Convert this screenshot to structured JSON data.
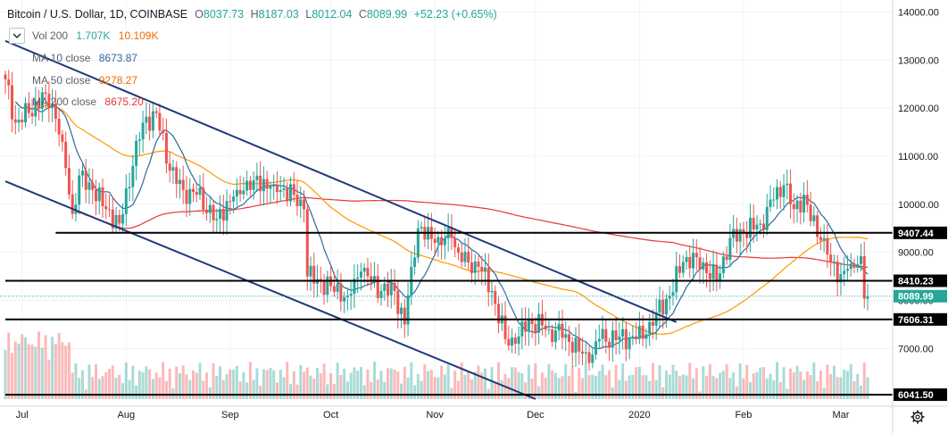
{
  "header": {
    "title": "Bitcoin / U.S. Dollar, 1D, COINBASE",
    "open_label": "O",
    "open": "8037.73",
    "high_label": "H",
    "high": "8187.03",
    "low_label": "L",
    "low": "8012.04",
    "close_label": "C",
    "close": "8089.99",
    "change": "+52.23 (+0.65%)"
  },
  "indicators": [
    {
      "label": "Vol 200",
      "values": [
        "1.707K",
        "10.109K"
      ],
      "colors": [
        "#26a69a",
        "#ef6c00"
      ]
    },
    {
      "label": "MA 10 close",
      "values": [
        "8673.87"
      ],
      "colors": [
        "#2d6a9f"
      ]
    },
    {
      "label": "MA 50 close",
      "values": [
        "9278.27"
      ],
      "colors": [
        "#ff9800"
      ]
    },
    {
      "label": "MA 200 close",
      "values": [
        "8675.20"
      ],
      "colors": [
        "#e53935"
      ]
    }
  ],
  "colors": {
    "up": "#26a69a",
    "down": "#ef5350",
    "ma10": "#2d6a9f",
    "ma50": "#ff9800",
    "ma200": "#e53935",
    "channel": "#1f3a7a",
    "level": "#000000"
  },
  "icons": {
    "collapse": "chevron-down-icon",
    "settings": "gear-icon"
  },
  "chart_data": {
    "type": "candlestick",
    "title": "Bitcoin / U.S. Dollar, 1D, COINBASE",
    "ylim": [
      5950,
      14250
    ],
    "y_ticks": [
      7000,
      8000,
      9000,
      10000,
      11000,
      12000,
      13000,
      14000
    ],
    "y_tick_labels": [
      "7000.00",
      "8000.00",
      "9000.00",
      "10000.00",
      "11000.00",
      "12000.00",
      "13000.00",
      "14000.00"
    ],
    "x_labels": [
      "Jul",
      "Aug",
      "Sep",
      "Oct",
      "Nov",
      "Dec",
      "2020",
      "Feb",
      "Mar"
    ],
    "x_label_dates": [
      "2019-07-01",
      "2019-08-01",
      "2019-09-01",
      "2019-10-01",
      "2019-11-01",
      "2019-12-01",
      "2020-01-01",
      "2020-02-01",
      "2020-03-01"
    ],
    "date_range": [
      "2019-06-26",
      "2020-03-09"
    ],
    "horizontal_levels": [
      {
        "value": 9407.44,
        "label": "9407.44",
        "from": "2019-07-11"
      },
      {
        "value": 8410.23,
        "label": "8410.23",
        "from": "2019-06-26"
      },
      {
        "value": 7606.31,
        "label": "7606.31",
        "from": "2019-06-26"
      },
      {
        "value": 6041.5,
        "label": "6041.50",
        "from": "2019-06-26"
      }
    ],
    "current_price": {
      "value": 8089.99,
      "label": "8089.99"
    },
    "channel_lines": [
      {
        "start": [
          "2019-06-26",
          13400
        ],
        "end": [
          "2020-01-12",
          7550
        ]
      },
      {
        "start": [
          "2019-06-26",
          10480
        ],
        "end": [
          "2019-12-01",
          5950
        ]
      }
    ],
    "anchor_closes": [
      [
        "2019-06-26",
        12600
      ],
      [
        "2019-06-29",
        11700
      ],
      [
        "2019-07-03",
        11900
      ],
      [
        "2019-07-08",
        12300
      ],
      [
        "2019-07-10",
        12100
      ],
      [
        "2019-07-13",
        11300
      ],
      [
        "2019-07-16",
        9800
      ],
      [
        "2019-07-18",
        10600
      ],
      [
        "2019-07-22",
        10300
      ],
      [
        "2019-07-26",
        9900
      ],
      [
        "2019-07-30",
        9600
      ],
      [
        "2019-08-03",
        10800
      ],
      [
        "2019-08-06",
        11700
      ],
      [
        "2019-08-10",
        11900
      ],
      [
        "2019-08-14",
        10700
      ],
      [
        "2019-08-18",
        10300
      ],
      [
        "2019-08-22",
        10200
      ],
      [
        "2019-08-28",
        9700
      ],
      [
        "2019-09-03",
        10300
      ],
      [
        "2019-09-08",
        10500
      ],
      [
        "2019-09-14",
        10400
      ],
      [
        "2019-09-20",
        10200
      ],
      [
        "2019-09-23",
        9900
      ],
      [
        "2019-09-24",
        8500
      ],
      [
        "2019-10-01",
        8300
      ],
      [
        "2019-10-06",
        8100
      ],
      [
        "2019-10-10",
        8600
      ],
      [
        "2019-10-16",
        8200
      ],
      [
        "2019-10-20",
        8200
      ],
      [
        "2019-10-23",
        7500
      ],
      [
        "2019-10-25",
        8700
      ],
      [
        "2019-10-27",
        9500
      ],
      [
        "2019-11-01",
        9200
      ],
      [
        "2019-11-06",
        9300
      ],
      [
        "2019-11-09",
        8800
      ],
      [
        "2019-11-14",
        8700
      ],
      [
        "2019-11-18",
        8200
      ],
      [
        "2019-11-22",
        7200
      ],
      [
        "2019-11-25",
        7100
      ],
      [
        "2019-11-29",
        7600
      ],
      [
        "2019-12-05",
        7400
      ],
      [
        "2019-12-10",
        7300
      ],
      [
        "2019-12-17",
        6700
      ],
      [
        "2019-12-20",
        7200
      ],
      [
        "2019-12-26",
        7250
      ],
      [
        "2019-12-31",
        7200
      ],
      [
        "2020-01-03",
        7300
      ],
      [
        "2020-01-06",
        7750
      ],
      [
        "2020-01-10",
        8100
      ],
      [
        "2020-01-14",
        8800
      ],
      [
        "2020-01-18",
        8900
      ],
      [
        "2020-01-24",
        8400
      ],
      [
        "2020-01-28",
        9300
      ],
      [
        "2020-02-01",
        9400
      ],
      [
        "2020-02-06",
        9600
      ],
      [
        "2020-02-10",
        10100
      ],
      [
        "2020-02-13",
        10400
      ],
      [
        "2020-02-16",
        9900
      ],
      [
        "2020-02-19",
        10200
      ],
      [
        "2020-02-21",
        9650
      ],
      [
        "2020-02-25",
        9300
      ],
      [
        "2020-02-27",
        8800
      ],
      [
        "2020-03-01",
        8550
      ],
      [
        "2020-03-04",
        8770
      ],
      [
        "2020-03-07",
        8920
      ],
      [
        "2020-03-08",
        8037.73
      ],
      [
        "2020-03-09",
        8089.99
      ]
    ]
  }
}
